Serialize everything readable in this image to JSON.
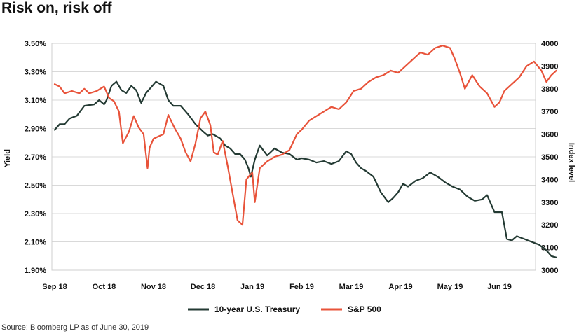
{
  "title": "Risk on, risk off",
  "source": "Source: Bloomberg LP as of June 30, 2019",
  "chart_data": {
    "type": "line",
    "title": "Risk on, risk off",
    "ylabel_left": "Yield",
    "ylabel_right": "Index level",
    "ylim_left": [
      1.9,
      3.5
    ],
    "ylim_right": [
      3000,
      4000
    ],
    "xlim": [
      0,
      10
    ],
    "grid": true,
    "legend_position": "bottom-center",
    "x_tick_labels": [
      "Sep 18",
      "Oct 18",
      "Nov 18",
      "Dec 18",
      "Jan 19",
      "Feb 19",
      "Mar 19",
      "Apr 19",
      "May 19",
      "Jun 19"
    ],
    "x_tick_positions": [
      0,
      1,
      2,
      3,
      4,
      5,
      6,
      7,
      8,
      9
    ],
    "y_left_ticks": [
      1.9,
      2.1,
      2.3,
      2.5,
      2.7,
      2.9,
      3.1,
      3.3,
      3.5
    ],
    "y_left_tick_labels": [
      "1.90%",
      "2.10%",
      "2.30%",
      "2.50%",
      "2.70%",
      "2.90%",
      "3.10%",
      "3.30%",
      "3.50%"
    ],
    "y_right_ticks": [
      3000,
      3100,
      3200,
      3300,
      3400,
      3500,
      3600,
      3700,
      3800,
      3900,
      4000
    ],
    "y_right_tick_labels": [
      "3000",
      "3100",
      "3200",
      "3300",
      "3400",
      "3500",
      "3600",
      "3700",
      "3800",
      "3900",
      "4000"
    ],
    "series": [
      {
        "name": "10-year U.S. Treasury",
        "axis": "left",
        "color": "#233a33",
        "x": [
          0,
          0.1,
          0.2,
          0.3,
          0.45,
          0.6,
          0.8,
          0.9,
          1.0,
          1.05,
          1.15,
          1.25,
          1.35,
          1.45,
          1.55,
          1.65,
          1.75,
          1.85,
          1.95,
          2.05,
          2.15,
          2.2,
          2.3,
          2.4,
          2.55,
          2.7,
          2.85,
          3.0,
          3.1,
          3.2,
          3.35,
          3.45,
          3.55,
          3.65,
          3.75,
          3.85,
          3.92,
          3.97,
          4.05,
          4.15,
          4.3,
          4.45,
          4.6,
          4.75,
          4.9,
          5.0,
          5.15,
          5.3,
          5.45,
          5.6,
          5.75,
          5.9,
          6.0,
          6.1,
          6.2,
          6.3,
          6.45,
          6.6,
          6.75,
          6.85,
          6.95,
          7.05,
          7.15,
          7.3,
          7.45,
          7.6,
          7.75,
          7.9,
          8.05,
          8.2,
          8.35,
          8.5,
          8.65,
          8.75,
          8.9,
          9.05,
          9.15,
          9.25,
          9.35,
          9.5,
          9.65,
          9.8,
          9.95,
          10.05,
          10.15
        ],
        "values": [
          2.89,
          2.93,
          2.93,
          2.97,
          2.99,
          3.06,
          3.07,
          3.1,
          3.07,
          3.1,
          3.2,
          3.23,
          3.17,
          3.15,
          3.2,
          3.17,
          3.08,
          3.15,
          3.19,
          3.23,
          3.21,
          3.2,
          3.1,
          3.06,
          3.06,
          3.0,
          2.93,
          2.88,
          2.85,
          2.86,
          2.83,
          2.78,
          2.76,
          2.72,
          2.72,
          2.68,
          2.62,
          2.56,
          2.68,
          2.78,
          2.71,
          2.76,
          2.73,
          2.72,
          2.68,
          2.69,
          2.68,
          2.66,
          2.67,
          2.65,
          2.67,
          2.74,
          2.72,
          2.66,
          2.62,
          2.6,
          2.56,
          2.45,
          2.38,
          2.41,
          2.45,
          2.51,
          2.49,
          2.53,
          2.55,
          2.59,
          2.56,
          2.52,
          2.49,
          2.47,
          2.42,
          2.39,
          2.4,
          2.43,
          2.31,
          2.31,
          2.12,
          2.11,
          2.14,
          2.12,
          2.1,
          2.08,
          2.04,
          2.0,
          1.99
        ]
      },
      {
        "name": "S&P 500",
        "axis": "right",
        "color": "#e8533a",
        "x": [
          0,
          0.1,
          0.2,
          0.35,
          0.5,
          0.6,
          0.7,
          0.85,
          1.0,
          1.1,
          1.2,
          1.3,
          1.38,
          1.5,
          1.6,
          1.7,
          1.8,
          1.88,
          1.92,
          2.0,
          2.1,
          2.2,
          2.3,
          2.42,
          2.55,
          2.65,
          2.75,
          2.85,
          2.95,
          3.05,
          3.15,
          3.22,
          3.3,
          3.4,
          3.5,
          3.6,
          3.7,
          3.8,
          3.88,
          3.95,
          4.0,
          4.05,
          4.15,
          4.3,
          4.45,
          4.6,
          4.75,
          4.9,
          5.0,
          5.15,
          5.3,
          5.45,
          5.6,
          5.75,
          5.9,
          6.05,
          6.2,
          6.35,
          6.5,
          6.65,
          6.8,
          6.95,
          7.1,
          7.25,
          7.4,
          7.55,
          7.7,
          7.85,
          8.0,
          8.1,
          8.2,
          8.3,
          8.45,
          8.6,
          8.75,
          8.9,
          9.0,
          9.1,
          9.25,
          9.4,
          9.55,
          9.7,
          9.85,
          9.95,
          10.05,
          10.15
        ],
        "values": [
          3820,
          3810,
          3780,
          3790,
          3780,
          3800,
          3780,
          3790,
          3810,
          3760,
          3745,
          3700,
          3560,
          3610,
          3680,
          3630,
          3600,
          3450,
          3540,
          3580,
          3590,
          3600,
          3685,
          3630,
          3580,
          3520,
          3480,
          3560,
          3670,
          3700,
          3640,
          3520,
          3510,
          3570,
          3460,
          3340,
          3220,
          3200,
          3400,
          3420,
          3430,
          3300,
          3450,
          3480,
          3500,
          3510,
          3530,
          3600,
          3620,
          3660,
          3680,
          3700,
          3720,
          3710,
          3740,
          3790,
          3800,
          3830,
          3850,
          3860,
          3880,
          3870,
          3900,
          3930,
          3960,
          3950,
          3980,
          3990,
          3980,
          3930,
          3870,
          3800,
          3860,
          3810,
          3780,
          3720,
          3740,
          3790,
          3820,
          3850,
          3900,
          3920,
          3880,
          3830,
          3860,
          3880
        ]
      }
    ]
  }
}
